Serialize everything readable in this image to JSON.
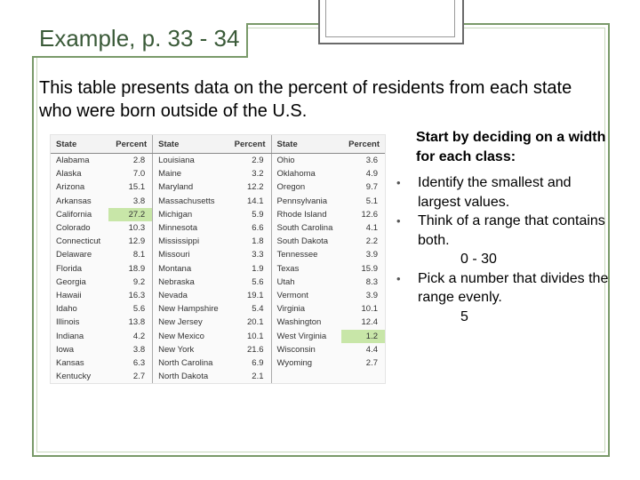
{
  "title": "Example, p. 33 - 34",
  "intro": "This table presents data on the percent of residents from each state who were born outside of the U.S.",
  "table": {
    "header": [
      "State",
      "Percent",
      "State",
      "Percent",
      "State",
      "Percent"
    ],
    "rows": [
      [
        "Alabama",
        "2.8",
        "Louisiana",
        "2.9",
        "Ohio",
        "3.6"
      ],
      [
        "Alaska",
        "7.0",
        "Maine",
        "3.2",
        "Oklahoma",
        "4.9"
      ],
      [
        "Arizona",
        "15.1",
        "Maryland",
        "12.2",
        "Oregon",
        "9.7"
      ],
      [
        "Arkansas",
        "3.8",
        "Massachusetts",
        "14.1",
        "Pennsylvania",
        "5.1"
      ],
      [
        "California",
        "27.2",
        "Michigan",
        "5.9",
        "Rhode Island",
        "12.6"
      ],
      [
        "Colorado",
        "10.3",
        "Minnesota",
        "6.6",
        "South Carolina",
        "4.1"
      ],
      [
        "Connecticut",
        "12.9",
        "Mississippi",
        "1.8",
        "South Dakota",
        "2.2"
      ],
      [
        "Delaware",
        "8.1",
        "Missouri",
        "3.3",
        "Tennessee",
        "3.9"
      ],
      [
        "Florida",
        "18.9",
        "Montana",
        "1.9",
        "Texas",
        "15.9"
      ],
      [
        "Georgia",
        "9.2",
        "Nebraska",
        "5.6",
        "Utah",
        "8.3"
      ],
      [
        "Hawaii",
        "16.3",
        "Nevada",
        "19.1",
        "Vermont",
        "3.9"
      ],
      [
        "Idaho",
        "5.6",
        "New Hampshire",
        "5.4",
        "Virginia",
        "10.1"
      ],
      [
        "Illinois",
        "13.8",
        "New Jersey",
        "20.1",
        "Washington",
        "12.4"
      ],
      [
        "Indiana",
        "4.2",
        "New Mexico",
        "10.1",
        "West Virginia",
        "1.2"
      ],
      [
        "Iowa",
        "3.8",
        "New York",
        "21.6",
        "Wisconsin",
        "4.4"
      ],
      [
        "Kansas",
        "6.3",
        "North Carolina",
        "6.9",
        "Wyoming",
        "2.7"
      ],
      [
        "Kentucky",
        "2.7",
        "North Dakota",
        "2.1"
      ]
    ]
  },
  "notes": {
    "heading": "Start by deciding on a width for each class:",
    "bullets": [
      {
        "text": "Identify the smallest and largest values."
      },
      {
        "text": "Think of a range that contains both.",
        "answer": "0 - 30"
      },
      {
        "text": "Pick a number that divides the range evenly.",
        "answer": "5"
      }
    ]
  }
}
